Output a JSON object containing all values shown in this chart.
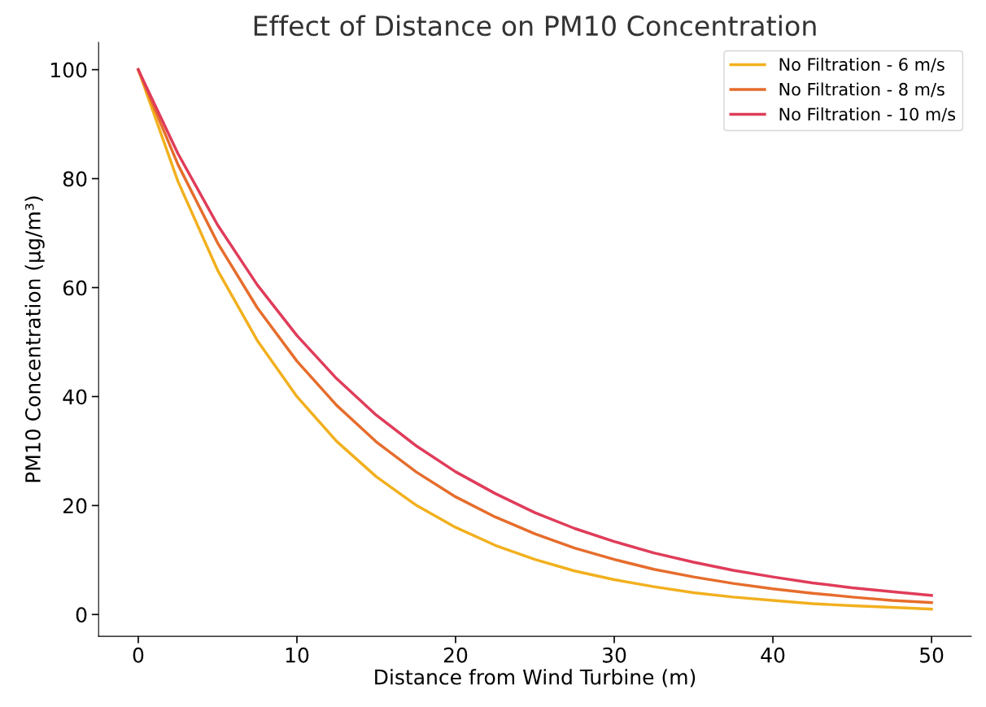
{
  "chart_data": {
    "type": "line",
    "title": "Effect of Distance on PM10 Concentration",
    "xlabel": "Distance from Wind Turbine (m)",
    "ylabel": "PM10 Concentration (µg/m³)",
    "x": [
      0,
      2.5,
      5,
      7.5,
      10,
      12.5,
      15,
      17.5,
      20,
      22.5,
      25,
      27.5,
      30,
      32.5,
      35,
      37.5,
      40,
      42.5,
      45,
      47.5,
      50
    ],
    "series": [
      {
        "name": "No Filtration - 6 m/s",
        "color": "#f2b01e",
        "values": [
          100,
          79.5,
          63.2,
          50.3,
          40.0,
          31.8,
          25.3,
          20.1,
          16.0,
          12.7,
          10.1,
          8.0,
          6.4,
          5.1,
          4.0,
          3.2,
          2.6,
          2.0,
          1.6,
          1.3,
          1.0
        ]
      },
      {
        "name": "No Filtration - 8 m/s",
        "color": "#e66d2c",
        "values": [
          100,
          82.6,
          68.2,
          56.3,
          46.5,
          38.4,
          31.7,
          26.2,
          21.6,
          17.9,
          14.8,
          12.2,
          10.1,
          8.3,
          6.9,
          5.7,
          4.7,
          3.9,
          3.2,
          2.6,
          2.2
        ]
      },
      {
        "name": "No Filtration - 10 m/s",
        "color": "#e03c5a",
        "values": [
          100,
          84.6,
          71.5,
          60.5,
          51.2,
          43.3,
          36.6,
          31.0,
          26.2,
          22.2,
          18.7,
          15.8,
          13.4,
          11.3,
          9.6,
          8.1,
          6.9,
          5.8,
          4.9,
          4.2,
          3.5
        ]
      }
    ],
    "xlim": [
      -2.5,
      52.5
    ],
    "xticks": [
      0,
      10,
      20,
      30,
      40,
      50
    ],
    "ylim": [
      -4,
      105
    ],
    "yticks": [
      0,
      20,
      40,
      60,
      80,
      100
    ],
    "legend": "upper right",
    "grid": false
  }
}
